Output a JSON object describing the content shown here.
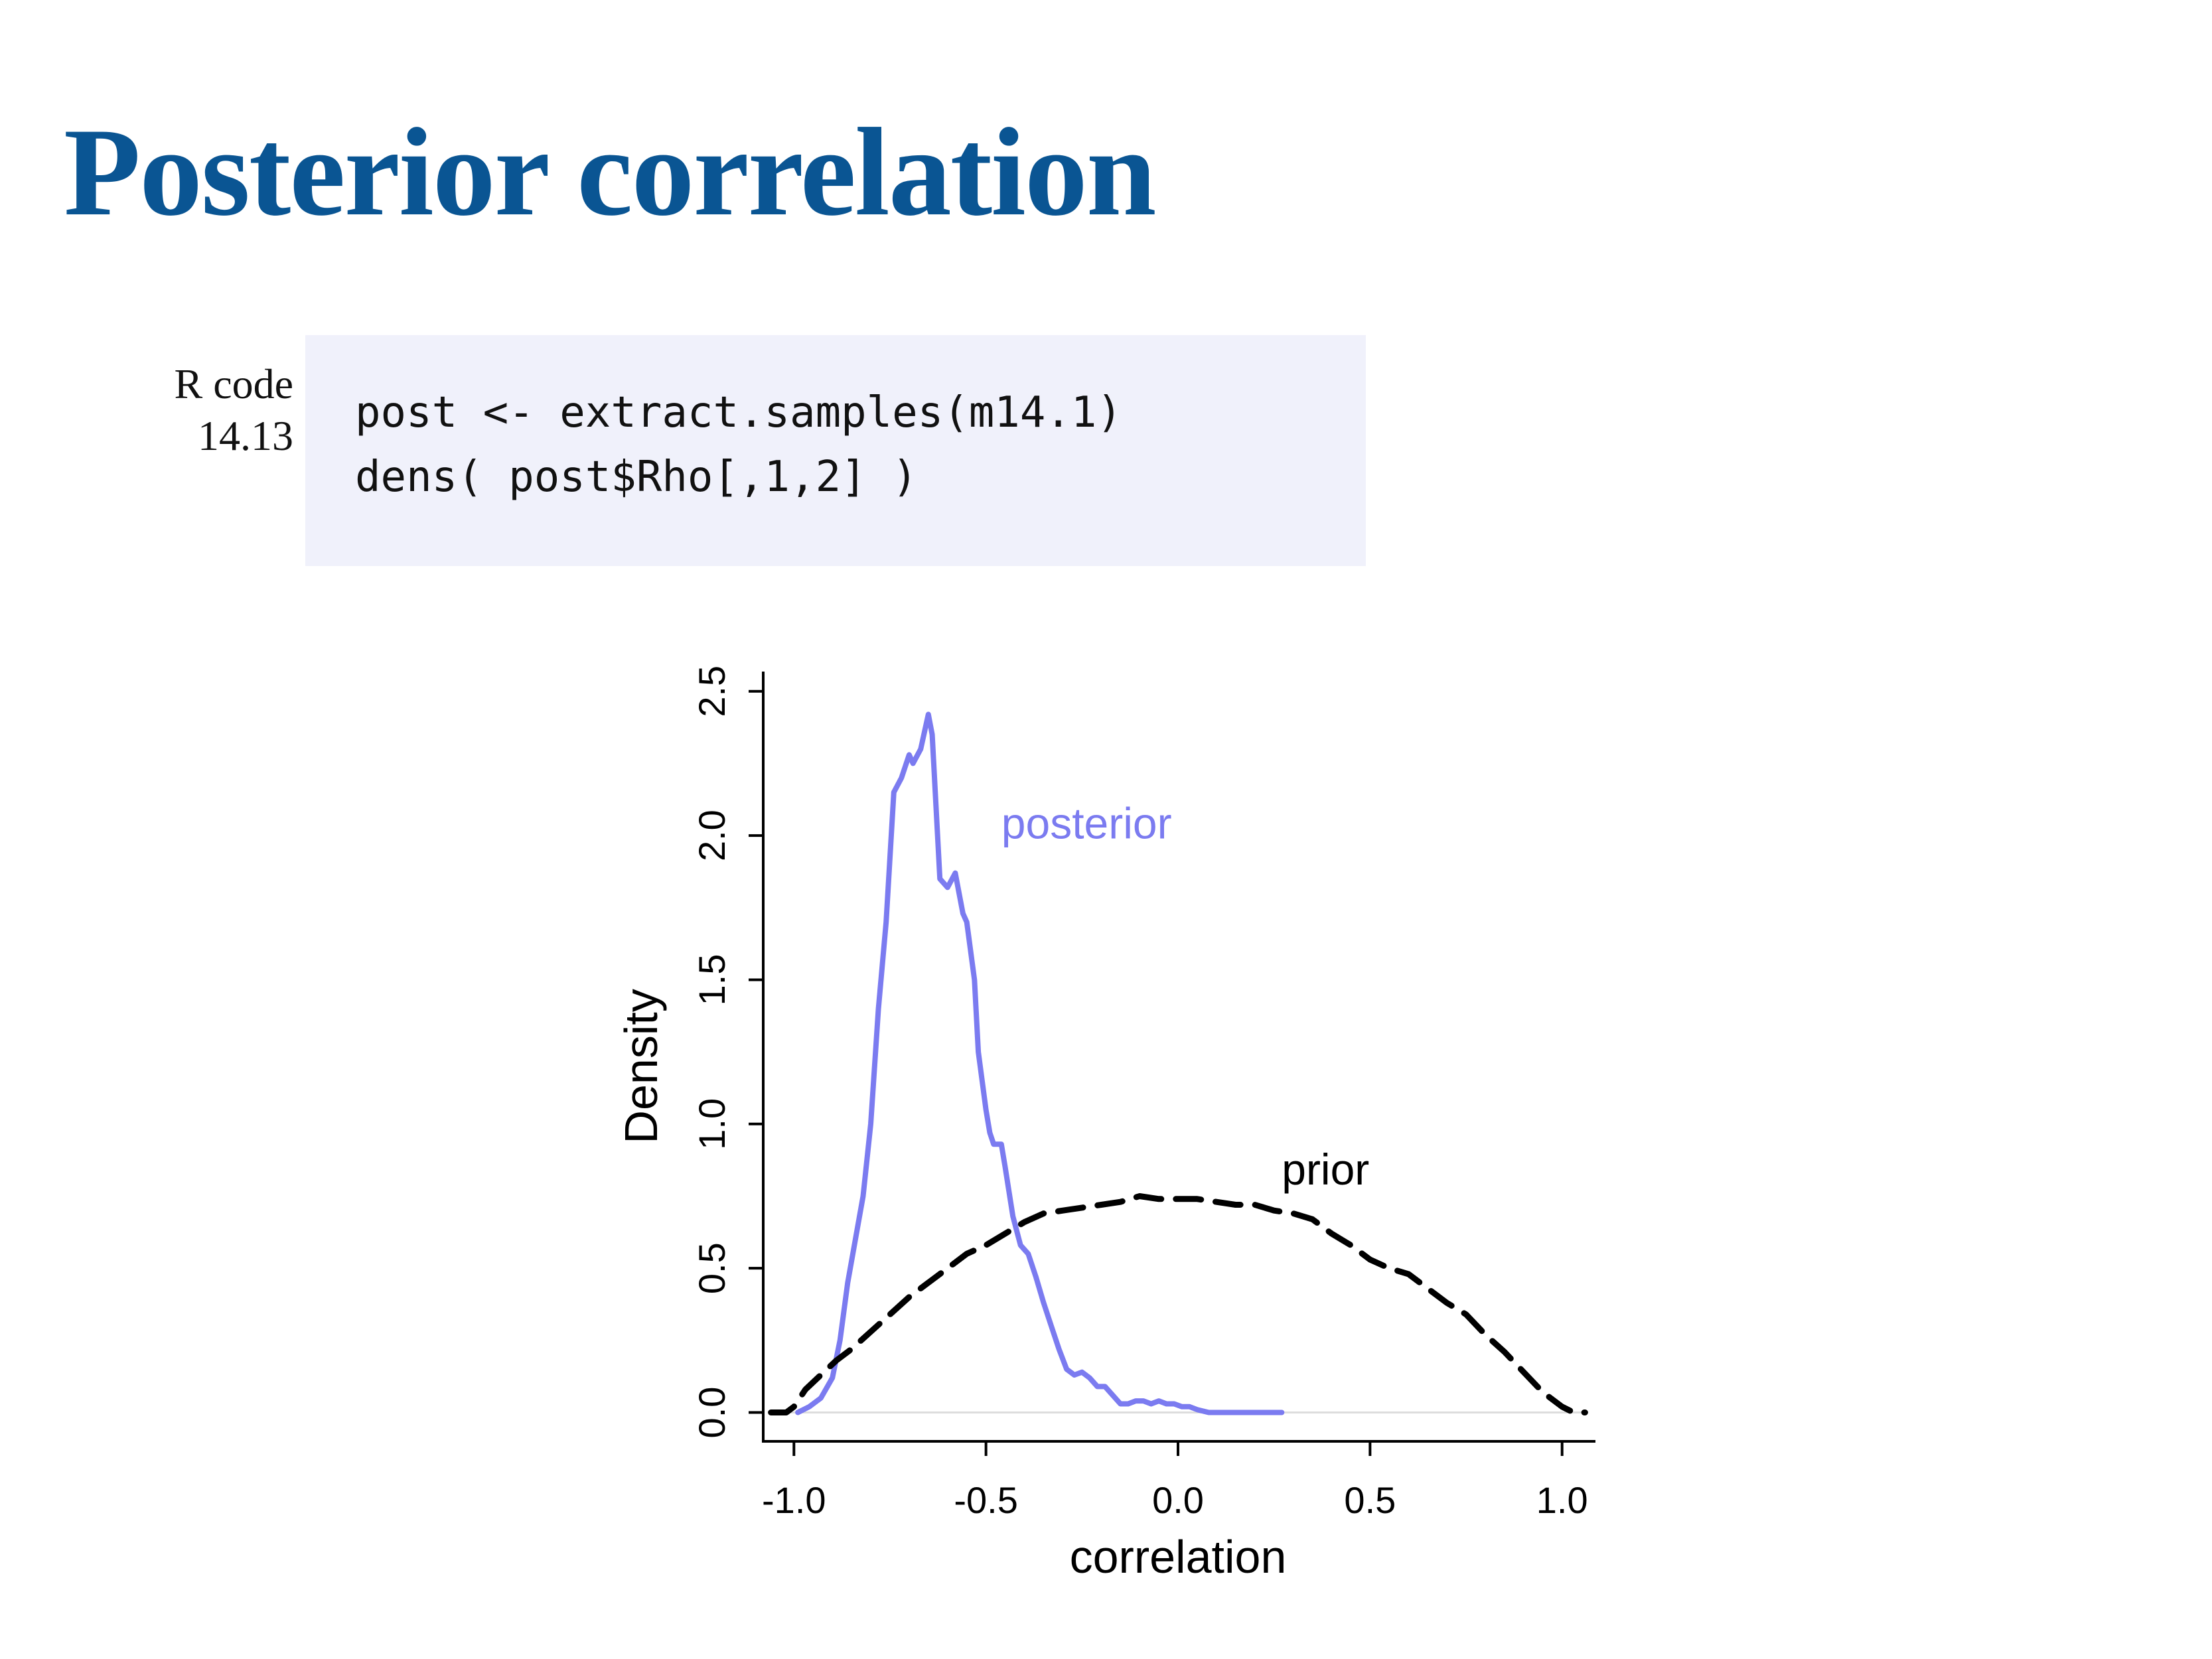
{
  "page": {
    "title": "Posterior correlation"
  },
  "code": {
    "label_line1": "R code",
    "label_line2": "14.13",
    "lines": [
      "post <- extract.samples(m14.1)",
      "dens( post$Rho[,1,2] )"
    ]
  },
  "chart_data": {
    "type": "line",
    "xlabel": "correlation",
    "ylabel": "Density",
    "xlim": [
      -1.08,
      1.08
    ],
    "ylim": [
      -0.1,
      2.55
    ],
    "xticks": [
      -1.0,
      -0.5,
      0.0,
      0.5,
      1.0
    ],
    "xtick_labels": [
      "-1.0",
      "-0.5",
      "0.0",
      "0.5",
      "1.0"
    ],
    "yticks": [
      0.0,
      0.5,
      1.0,
      1.5,
      2.0,
      2.5
    ],
    "ytick_labels": [
      "0.0",
      "0.5",
      "1.0",
      "1.5",
      "2.0",
      "2.5"
    ],
    "grid": false,
    "colors": {
      "posterior": "#7b7bf0",
      "prior": "#000000",
      "baseline": "#dddddd"
    },
    "series": [
      {
        "name": "posterior",
        "style": "solid",
        "x": [
          -0.99,
          -0.96,
          -0.93,
          -0.9,
          -0.88,
          -0.86,
          -0.84,
          -0.82,
          -0.8,
          -0.78,
          -0.76,
          -0.74,
          -0.72,
          -0.7,
          -0.69,
          -0.67,
          -0.65,
          -0.64,
          -0.63,
          -0.62,
          -0.6,
          -0.58,
          -0.57,
          -0.56,
          -0.55,
          -0.53,
          -0.52,
          -0.5,
          -0.49,
          -0.48,
          -0.46,
          -0.45,
          -0.43,
          -0.41,
          -0.39,
          -0.37,
          -0.35,
          -0.33,
          -0.31,
          -0.29,
          -0.27,
          -0.25,
          -0.23,
          -0.21,
          -0.19,
          -0.17,
          -0.15,
          -0.13,
          -0.11,
          -0.09,
          -0.07,
          -0.05,
          -0.03,
          -0.01,
          0.01,
          0.03,
          0.05,
          0.08,
          0.11,
          0.14,
          0.17,
          0.2,
          0.23,
          0.25,
          0.27
        ],
        "y": [
          0.0,
          0.02,
          0.05,
          0.12,
          0.25,
          0.45,
          0.6,
          0.75,
          1.0,
          1.4,
          1.7,
          2.15,
          2.2,
          2.28,
          2.25,
          2.3,
          2.42,
          2.35,
          2.1,
          1.85,
          1.82,
          1.87,
          1.8,
          1.73,
          1.7,
          1.5,
          1.25,
          1.05,
          0.97,
          0.93,
          0.93,
          0.85,
          0.68,
          0.58,
          0.55,
          0.47,
          0.38,
          0.3,
          0.22,
          0.15,
          0.13,
          0.14,
          0.12,
          0.09,
          0.09,
          0.06,
          0.03,
          0.03,
          0.04,
          0.04,
          0.03,
          0.04,
          0.03,
          0.03,
          0.02,
          0.02,
          0.01,
          0.0,
          0.0,
          0.0,
          0.0,
          0.0,
          0.0,
          0.0,
          0.0
        ]
      },
      {
        "name": "prior",
        "style": "dashed",
        "x": [
          -1.06,
          -1.02,
          -1.0,
          -0.97,
          -0.93,
          -0.89,
          -0.85,
          -0.8,
          -0.75,
          -0.7,
          -0.65,
          -0.6,
          -0.55,
          -0.5,
          -0.45,
          -0.4,
          -0.35,
          -0.3,
          -0.25,
          -0.2,
          -0.15,
          -0.1,
          -0.05,
          0.0,
          0.05,
          0.1,
          0.15,
          0.2,
          0.25,
          0.3,
          0.35,
          0.4,
          0.45,
          0.5,
          0.55,
          0.6,
          0.65,
          0.7,
          0.75,
          0.8,
          0.85,
          0.9,
          0.95,
          1.0,
          1.03,
          1.06
        ],
        "y": [
          0.0,
          0.0,
          0.02,
          0.08,
          0.13,
          0.18,
          0.22,
          0.28,
          0.34,
          0.4,
          0.45,
          0.5,
          0.55,
          0.58,
          0.62,
          0.66,
          0.69,
          0.7,
          0.71,
          0.72,
          0.73,
          0.75,
          0.74,
          0.74,
          0.74,
          0.73,
          0.72,
          0.72,
          0.7,
          0.69,
          0.67,
          0.62,
          0.58,
          0.53,
          0.5,
          0.48,
          0.43,
          0.38,
          0.34,
          0.27,
          0.21,
          0.14,
          0.07,
          0.02,
          0.0,
          0.0
        ]
      }
    ],
    "annotations": [
      {
        "text": "posterior",
        "x": -0.46,
        "y": 1.99,
        "color": "#7b7bf0"
      },
      {
        "text": "prior",
        "x": 0.27,
        "y": 0.79,
        "color": "#000000"
      }
    ]
  }
}
